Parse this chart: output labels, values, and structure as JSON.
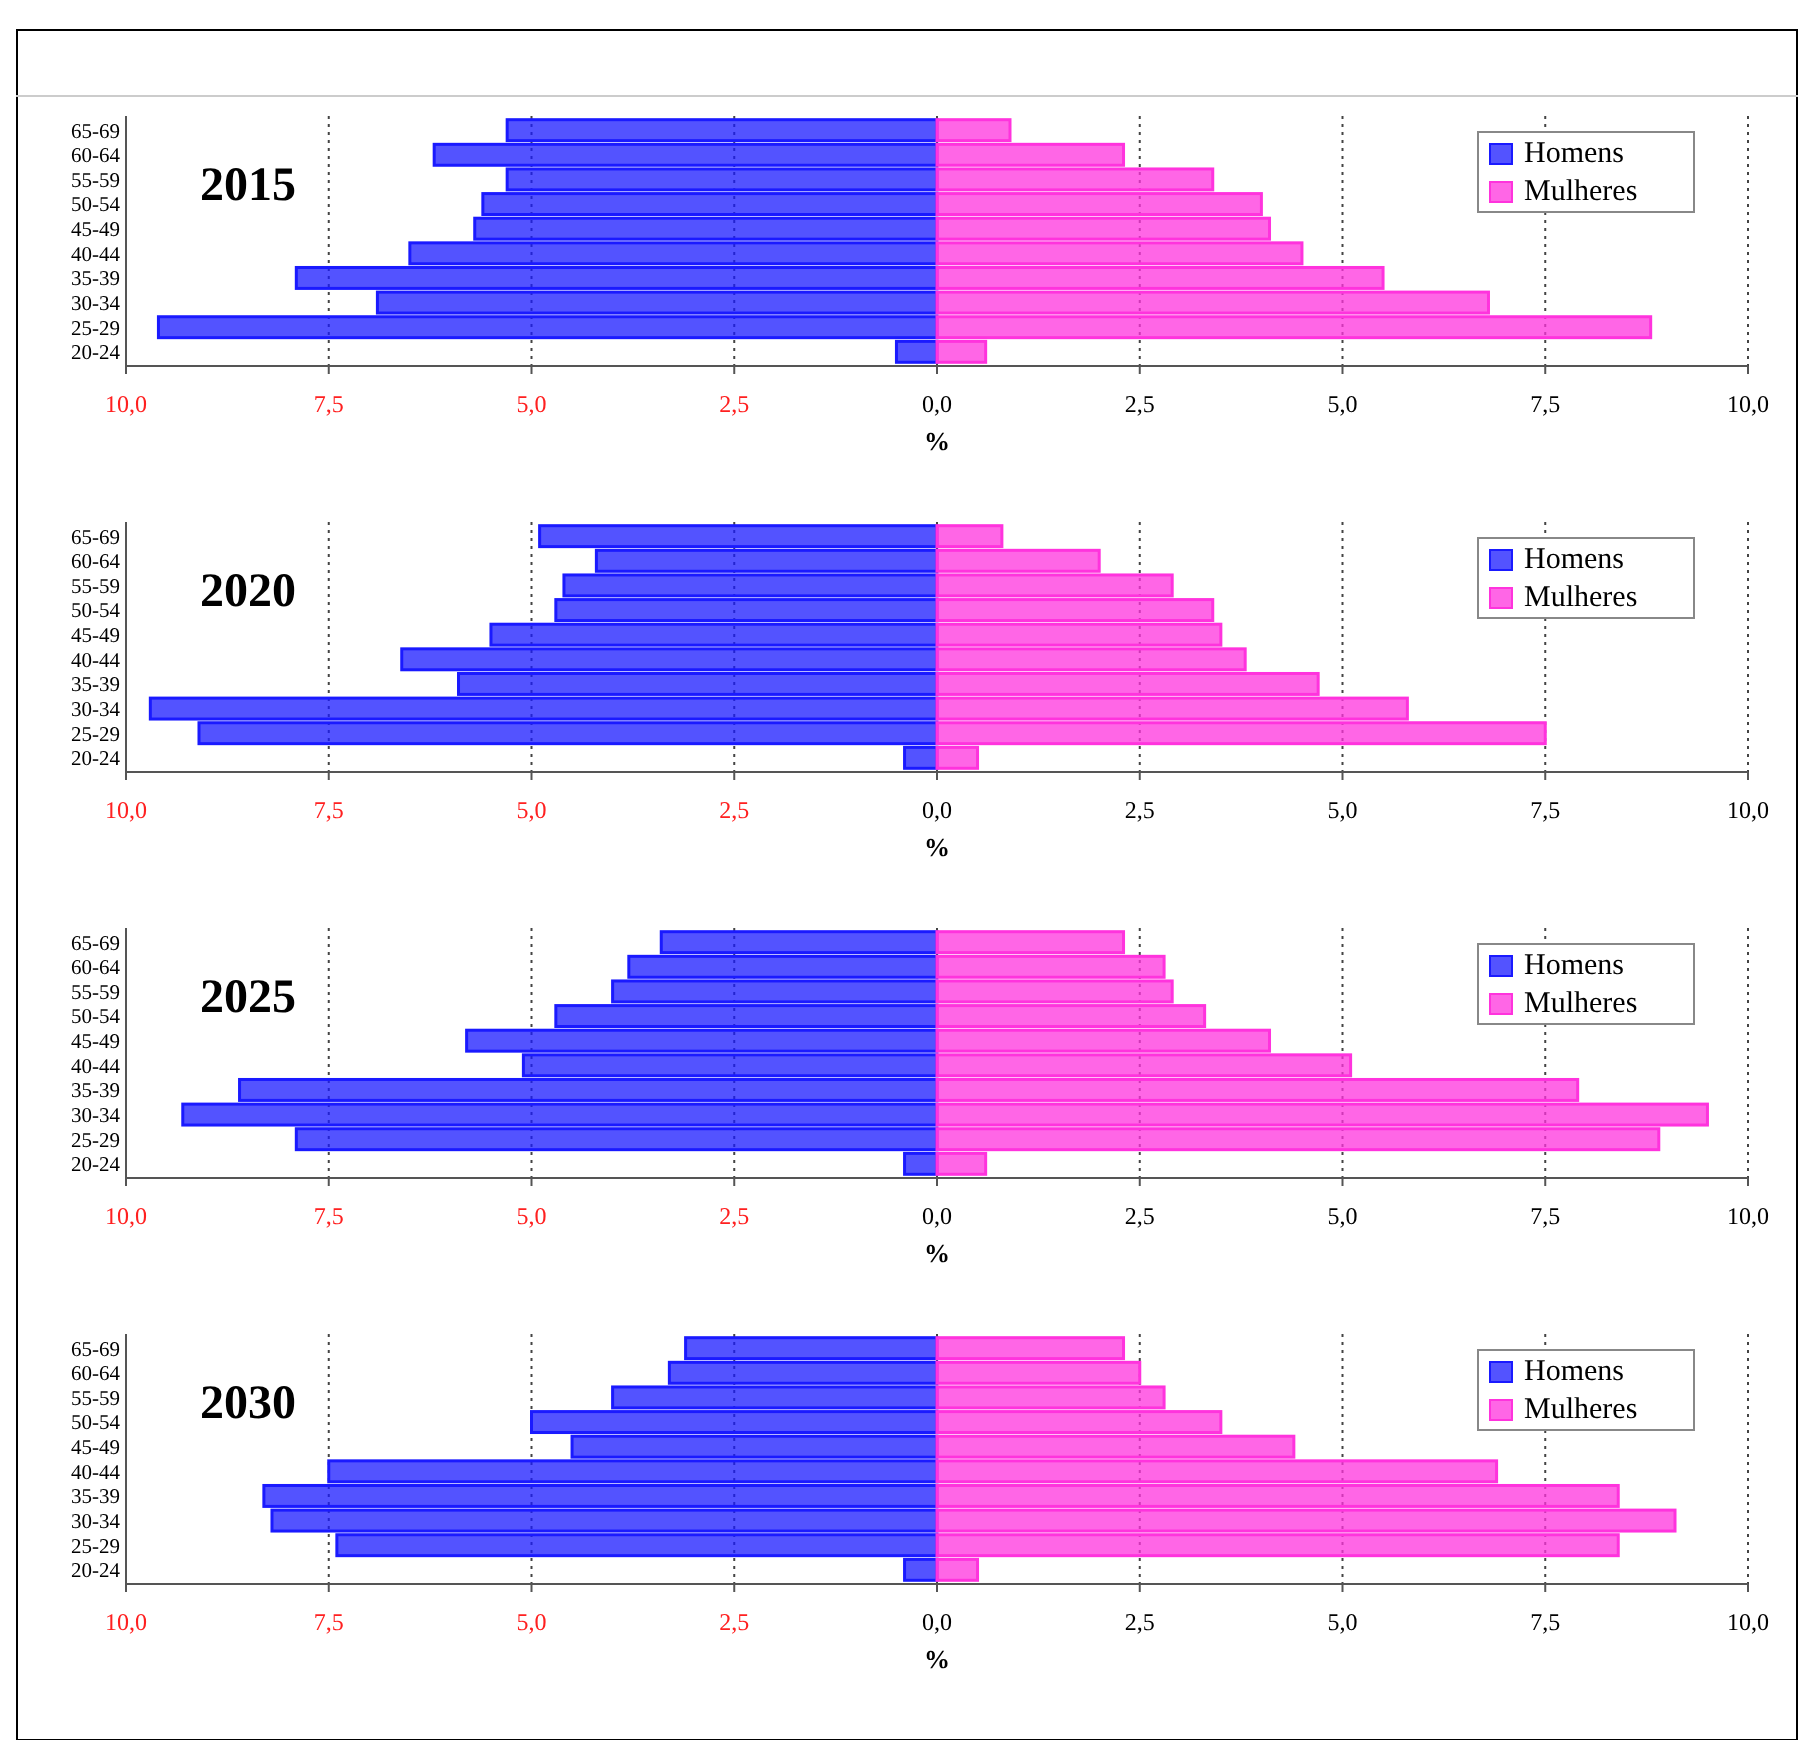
{
  "chart_data": [
    {
      "type": "bar",
      "title": "2015",
      "orientation": "horizontal",
      "stacked": true,
      "xlabel": "%",
      "categories": [
        "65-69",
        "60-64",
        "55-59",
        "50-54",
        "45-49",
        "40-44",
        "35-39",
        "30-34",
        "25-29",
        "20-24"
      ],
      "xlim": [
        -10,
        10
      ],
      "xticks": [
        {
          "value": -10,
          "label": "10,0"
        },
        {
          "value": -7.5,
          "label": "7,5"
        },
        {
          "value": -5,
          "label": "5,0"
        },
        {
          "value": -2.5,
          "label": "2,5"
        },
        {
          "value": 0,
          "label": "0,0"
        },
        {
          "value": 2.5,
          "label": "2,5"
        },
        {
          "value": 5,
          "label": "5,0"
        },
        {
          "value": 7.5,
          "label": "7,5"
        },
        {
          "value": 10,
          "label": "10,0"
        }
      ],
      "grid": "x",
      "legend": "top right",
      "series": [
        {
          "name": "Homens",
          "color": "#1a1aff",
          "values": [
            -5.3,
            -6.2,
            -5.3,
            -5.6,
            -5.7,
            -6.5,
            -7.9,
            -6.9,
            -9.6,
            -0.5
          ]
        },
        {
          "name": "Mulheres",
          "color": "#ff33dd",
          "values": [
            0.9,
            2.3,
            3.4,
            4.0,
            4.1,
            4.5,
            5.5,
            6.8,
            8.8,
            0.6
          ]
        }
      ]
    },
    {
      "type": "bar",
      "title": "2020",
      "orientation": "horizontal",
      "stacked": true,
      "xlabel": "%",
      "categories": [
        "65-69",
        "60-64",
        "55-59",
        "50-54",
        "45-49",
        "40-44",
        "35-39",
        "30-34",
        "25-29",
        "20-24"
      ],
      "xlim": [
        -10,
        10
      ],
      "xticks": [
        {
          "value": -10,
          "label": "10,0"
        },
        {
          "value": -7.5,
          "label": "7,5"
        },
        {
          "value": -5,
          "label": "5,0"
        },
        {
          "value": -2.5,
          "label": "2,5"
        },
        {
          "value": 0,
          "label": "0,0"
        },
        {
          "value": 2.5,
          "label": "2,5"
        },
        {
          "value": 5,
          "label": "5,0"
        },
        {
          "value": 7.5,
          "label": "7,5"
        },
        {
          "value": 10,
          "label": "10,0"
        }
      ],
      "grid": "x",
      "legend": "top right",
      "series": [
        {
          "name": "Homens",
          "color": "#1a1aff",
          "values": [
            -4.9,
            -4.2,
            -4.6,
            -4.7,
            -5.5,
            -6.6,
            -5.9,
            -9.7,
            -9.1,
            -0.4
          ]
        },
        {
          "name": "Mulheres",
          "color": "#ff33dd",
          "values": [
            0.8,
            2.0,
            2.9,
            3.4,
            3.5,
            3.8,
            4.7,
            5.8,
            7.5,
            0.5
          ]
        }
      ]
    },
    {
      "type": "bar",
      "title": "2025",
      "orientation": "horizontal",
      "stacked": true,
      "xlabel": "%",
      "categories": [
        "65-69",
        "60-64",
        "55-59",
        "50-54",
        "45-49",
        "40-44",
        "35-39",
        "30-34",
        "25-29",
        "20-24"
      ],
      "xlim": [
        -10,
        10
      ],
      "xticks": [
        {
          "value": -10,
          "label": "10,0"
        },
        {
          "value": -7.5,
          "label": "7,5"
        },
        {
          "value": -5,
          "label": "5,0"
        },
        {
          "value": -2.5,
          "label": "2,5"
        },
        {
          "value": 0,
          "label": "0,0"
        },
        {
          "value": 2.5,
          "label": "2,5"
        },
        {
          "value": 5,
          "label": "5,0"
        },
        {
          "value": 7.5,
          "label": "7,5"
        },
        {
          "value": 10,
          "label": "10,0"
        }
      ],
      "grid": "x",
      "legend": "top right",
      "series": [
        {
          "name": "Homens",
          "color": "#1a1aff",
          "values": [
            -3.4,
            -3.8,
            -4.0,
            -4.7,
            -5.8,
            -5.1,
            -8.6,
            -9.3,
            -7.9,
            -0.4
          ]
        },
        {
          "name": "Mulheres",
          "color": "#ff33dd",
          "values": [
            2.3,
            2.8,
            2.9,
            3.3,
            4.1,
            5.1,
            7.9,
            9.5,
            8.9,
            0.6
          ]
        }
      ]
    },
    {
      "type": "bar",
      "title": "2030",
      "orientation": "horizontal",
      "stacked": true,
      "xlabel": "%",
      "categories": [
        "65-69",
        "60-64",
        "55-59",
        "50-54",
        "45-49",
        "40-44",
        "35-39",
        "30-34",
        "25-29",
        "20-24"
      ],
      "xlim": [
        -10,
        10
      ],
      "xticks": [
        {
          "value": -10,
          "label": "10,0"
        },
        {
          "value": -7.5,
          "label": "7,5"
        },
        {
          "value": -5,
          "label": "5,0"
        },
        {
          "value": -2.5,
          "label": "2,5"
        },
        {
          "value": 0,
          "label": "0,0"
        },
        {
          "value": 2.5,
          "label": "2,5"
        },
        {
          "value": 5,
          "label": "5,0"
        },
        {
          "value": 7.5,
          "label": "7,5"
        },
        {
          "value": 10,
          "label": "10,0"
        }
      ],
      "grid": "x",
      "legend": "top right",
      "series": [
        {
          "name": "Homens",
          "color": "#1a1aff",
          "values": [
            -3.1,
            -3.3,
            -4.0,
            -5.0,
            -4.5,
            -7.5,
            -8.3,
            -8.2,
            -7.4,
            -0.4
          ]
        },
        {
          "name": "Mulheres",
          "color": "#ff33dd",
          "values": [
            2.3,
            2.5,
            2.8,
            3.5,
            4.4,
            6.9,
            8.4,
            9.1,
            8.4,
            0.5
          ]
        }
      ]
    }
  ]
}
